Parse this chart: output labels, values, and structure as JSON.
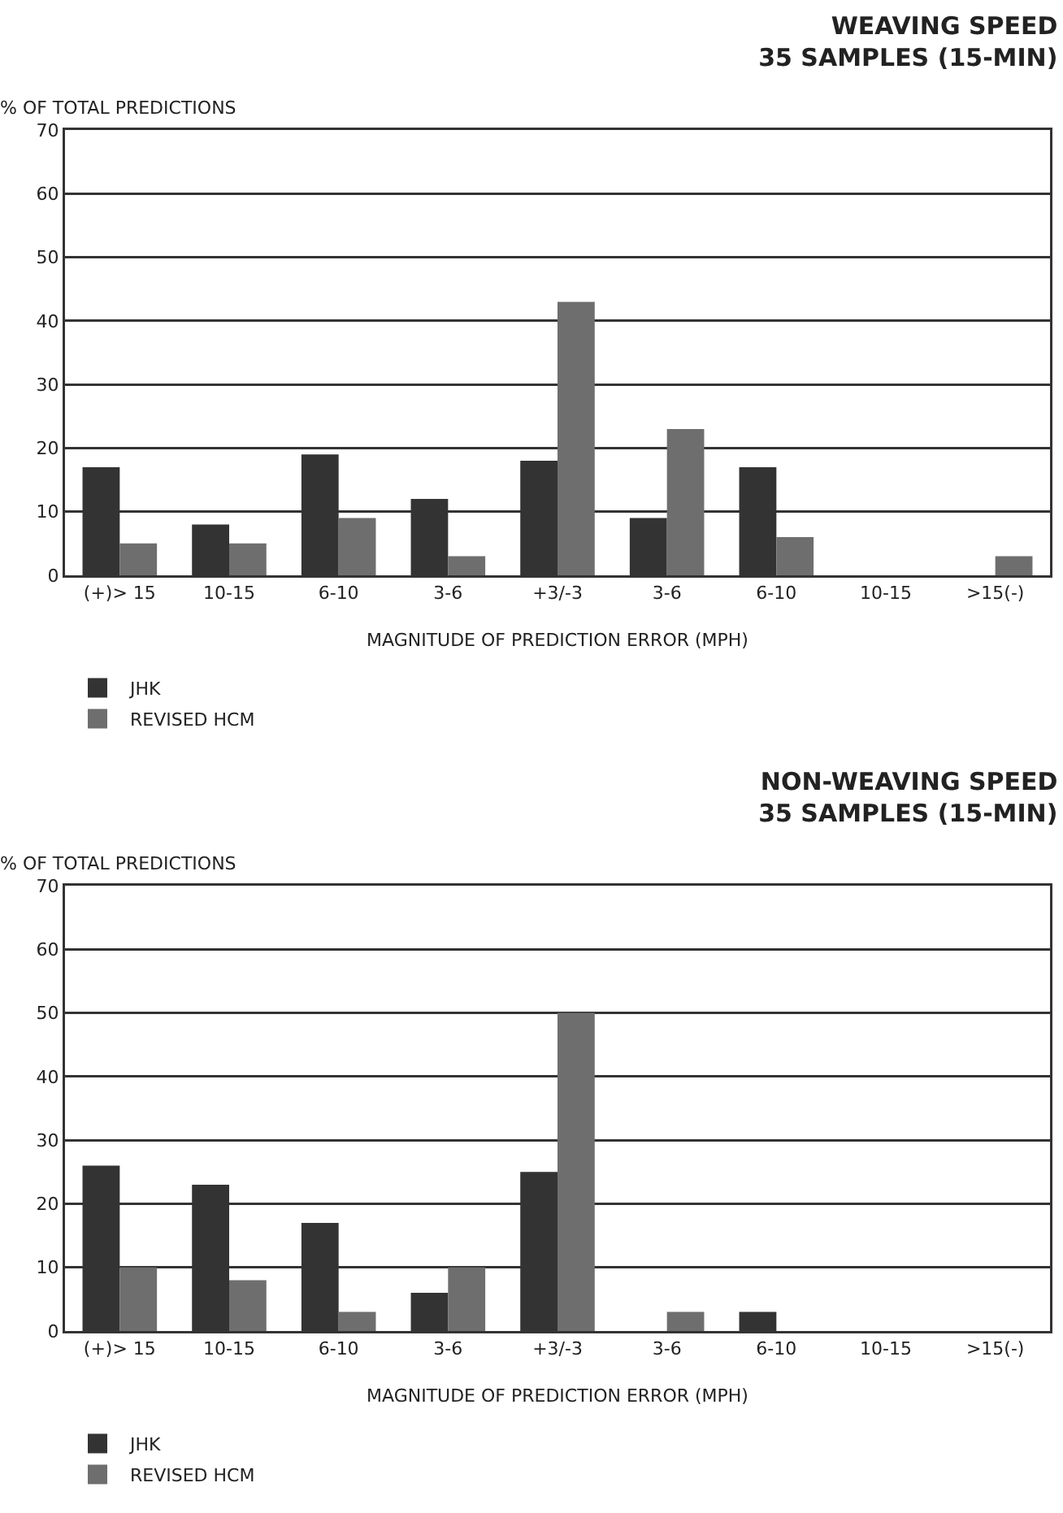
{
  "chart_data": [
    {
      "type": "bar",
      "title": "WEAVING SPEED",
      "subtitle": "35 SAMPLES (15-MIN)",
      "ylabel": "% OF TOTAL PREDICTIONS",
      "xlabel": "MAGNITUDE OF PREDICTION ERROR (MPH)",
      "categories": [
        "(+)> 15",
        "10-15",
        "6-10",
        "3-6",
        "+3/-3",
        "3-6",
        "6-10",
        "10-15",
        ">15(-)"
      ],
      "series": [
        {
          "name": "JHK",
          "color": "#333333",
          "values": [
            17,
            8,
            19,
            12,
            18,
            9,
            17,
            0,
            0
          ]
        },
        {
          "name": "REVISED HCM",
          "color": "#6e6e6e",
          "values": [
            5,
            5,
            9,
            3,
            43,
            23,
            6,
            0,
            3
          ]
        }
      ],
      "ylim": [
        0,
        70
      ],
      "yticks": [
        0,
        10,
        20,
        30,
        40,
        50,
        60,
        70
      ],
      "grid": "y",
      "legend": "bottom"
    },
    {
      "type": "bar",
      "title": "NON-WEAVING SPEED",
      "subtitle": "35 SAMPLES (15-MIN)",
      "ylabel": "% OF TOTAL PREDICTIONS",
      "xlabel": "MAGNITUDE OF PREDICTION ERROR (MPH)",
      "categories": [
        "(+)> 15",
        "10-15",
        "6-10",
        "3-6",
        "+3/-3",
        "3-6",
        "6-10",
        "10-15",
        ">15(-)"
      ],
      "series": [
        {
          "name": "JHK",
          "color": "#333333",
          "values": [
            26,
            23,
            17,
            6,
            25,
            0,
            3,
            0,
            0
          ]
        },
        {
          "name": "REVISED HCM",
          "color": "#6e6e6e",
          "values": [
            10,
            8,
            3,
            10,
            50,
            3,
            0,
            0,
            0
          ]
        }
      ],
      "ylim": [
        0,
        70
      ],
      "yticks": [
        0,
        10,
        20,
        30,
        40,
        50,
        60,
        70
      ],
      "grid": "y",
      "legend": "bottom"
    }
  ]
}
